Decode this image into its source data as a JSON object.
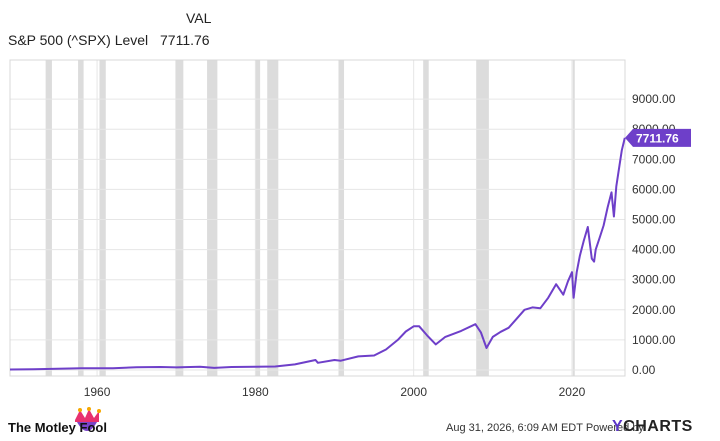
{
  "legend": {
    "header": "VAL",
    "series_name": "S&P 500 (^SPX) Level",
    "series_value": "7711.76"
  },
  "footer": {
    "brand": "The Motley Fool",
    "timestamp": "Aug 31, 2026, 6:09 AM EDT",
    "powered_by": "Powered by",
    "ycharts_y": "Y",
    "ycharts_rest": "CHARTS"
  },
  "colors": {
    "line": "#6e3fc9",
    "label_bg": "#6e3fc9",
    "recession": "#dcdcdc",
    "grid": "#e6e6e6",
    "axis_text": "#333333"
  },
  "chart_data": {
    "type": "line",
    "title": "",
    "xlabel": "",
    "ylabel": "",
    "xlim": [
      1949,
      2026.7
    ],
    "ylim": [
      -200,
      10300
    ],
    "x_ticks": [
      1960,
      1980,
      2000,
      2020
    ],
    "x_tick_labels": [
      "1960",
      "1980",
      "2000",
      "2020"
    ],
    "y_ticks": [
      0,
      1000,
      2000,
      3000,
      4000,
      5000,
      6000,
      7000,
      8000,
      9000
    ],
    "y_tick_labels": [
      "0.00",
      "1000.00",
      "2000.00",
      "3000.00",
      "4000.00",
      "5000.00",
      "6000.00",
      "7000.00",
      "8000.00",
      "9000.00"
    ],
    "grid": true,
    "y_axis_side": "right",
    "last_value_label": "7711.76",
    "recessions": [
      [
        1953.5,
        1954.3
      ],
      [
        1957.6,
        1958.3
      ],
      [
        1960.3,
        1961.1
      ],
      [
        1969.9,
        1970.9
      ],
      [
        1973.9,
        1975.2
      ],
      [
        1980.0,
        1980.6
      ],
      [
        1981.5,
        1982.9
      ],
      [
        1990.5,
        1991.2
      ],
      [
        2001.2,
        2001.9
      ],
      [
        2007.9,
        2009.5
      ],
      [
        2020.1,
        2020.3
      ]
    ],
    "series": [
      {
        "name": "S&P 500 (^SPX) Level",
        "x": [
          1949,
          1952,
          1955,
          1958,
          1960,
          1962,
          1965,
          1968,
          1970,
          1973,
          1974.8,
          1977,
          1980,
          1982.5,
          1985,
          1987.6,
          1987.9,
          1990,
          1990.8,
          1993,
          1995,
          1996.5,
          1998,
          1999,
          2000,
          2000.7,
          2001.7,
          2002.8,
          2004,
          2006,
          2007.8,
          2008.5,
          2009.2,
          2010,
          2011,
          2012,
          2013,
          2014,
          2015,
          2016,
          2017,
          2018,
          2018.9,
          2019.5,
          2020,
          2020.2,
          2020.6,
          2021,
          2021.5,
          2022,
          2022.5,
          2022.8,
          2023,
          2023.5,
          2024,
          2024.5,
          2025,
          2025.3,
          2025.6,
          2026,
          2026.3,
          2026.67
        ],
        "y": [
          15,
          24,
          40,
          55,
          58,
          60,
          88,
          100,
          85,
          110,
          70,
          100,
          110,
          115,
          185,
          330,
          240,
          330,
          310,
          450,
          480,
          680,
          1000,
          1280,
          1450,
          1450,
          1150,
          850,
          1100,
          1300,
          1520,
          1250,
          730,
          1100,
          1270,
          1400,
          1700,
          2000,
          2080,
          2050,
          2400,
          2850,
          2500,
          2950,
          3250,
          2400,
          3250,
          3800,
          4300,
          4750,
          3700,
          3600,
          4000,
          4400,
          4800,
          5400,
          5900,
          5100,
          6100,
          6800,
          7300,
          7711.76
        ]
      }
    ]
  }
}
